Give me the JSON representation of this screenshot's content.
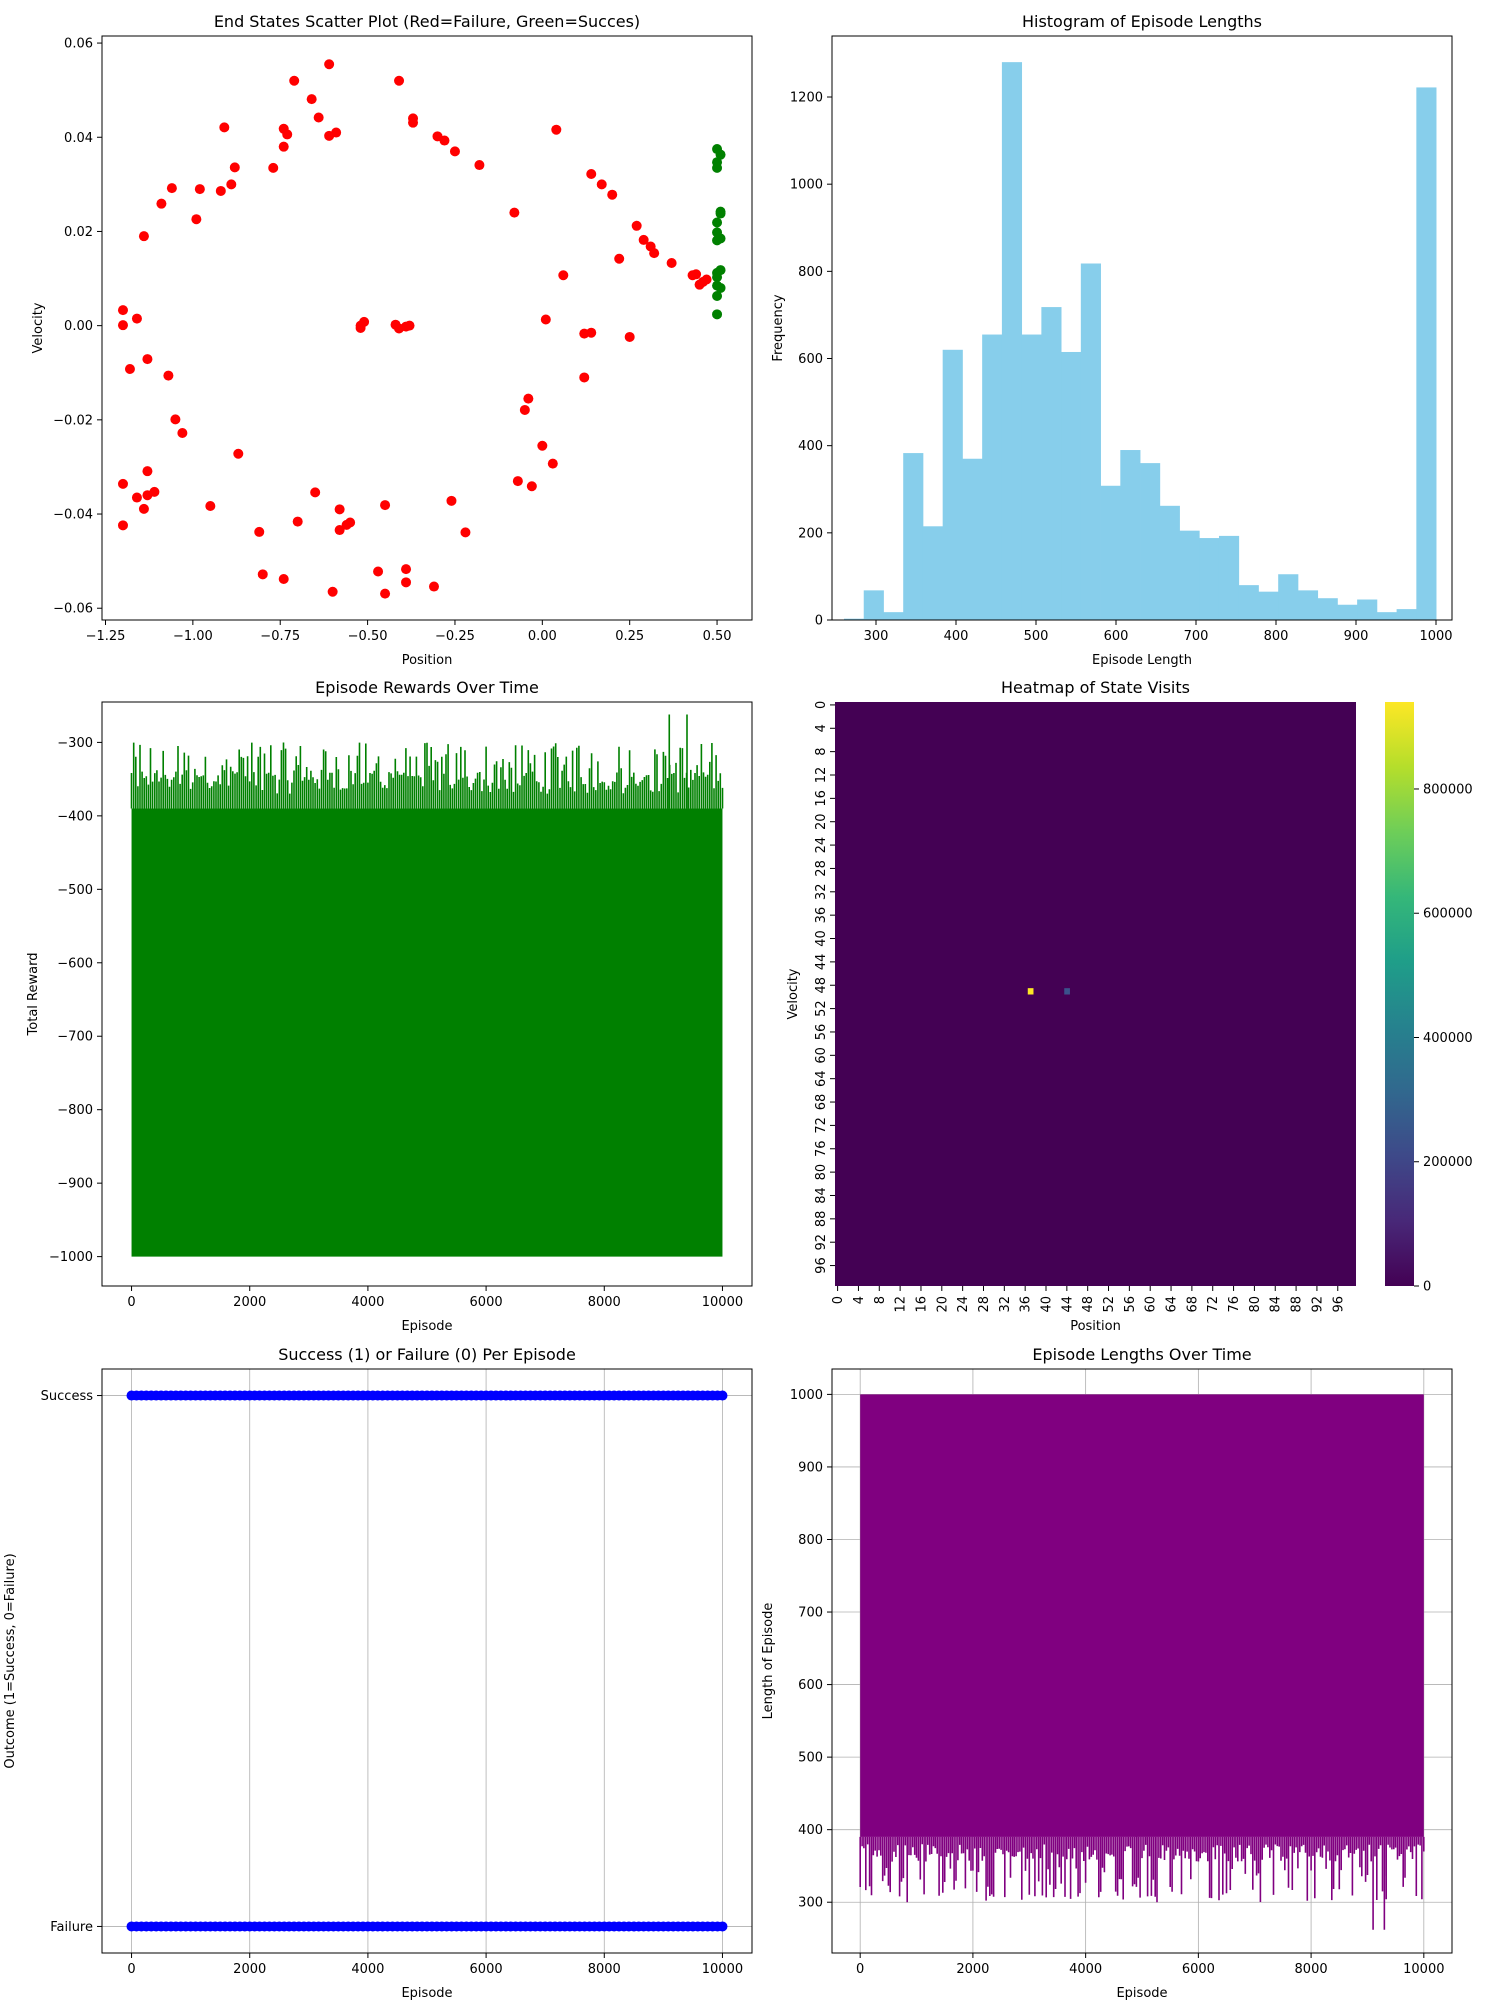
{
  "figure": {
    "background": "#ffffff"
  },
  "chart_data": [
    {
      "id": "scatter",
      "type": "scatter",
      "title": "End States Scatter Plot (Red=Failure, Green=Succes)",
      "xlabel": "Position",
      "ylabel": "Velocity",
      "xlim": [
        -1.26,
        0.6
      ],
      "ylim": [
        -0.0625,
        0.0615
      ],
      "xticks": [
        -1.25,
        -1.0,
        -0.75,
        -0.5,
        -0.25,
        0.0,
        0.25,
        0.5
      ],
      "xtick_labels": [
        "−1.25",
        "−1.00",
        "−0.75",
        "−0.50",
        "−0.25",
        "0.00",
        "0.25",
        "0.50"
      ],
      "yticks": [
        -0.06,
        -0.04,
        -0.02,
        0.0,
        0.02,
        0.04,
        0.06
      ],
      "ytick_labels": [
        "−0.06",
        "−0.04",
        "−0.02",
        "0.00",
        "0.02",
        "0.04",
        "0.06"
      ],
      "series": [
        {
          "color": "#ff0000",
          "points": [
            [
              -1.2,
              0.0033
            ],
            [
              -1.2,
              0.0001
            ],
            [
              -1.16,
              0.0015
            ],
            [
              -1.13,
              -0.0071
            ],
            [
              -1.18,
              -0.0092
            ],
            [
              -1.14,
              0.019
            ],
            [
              -1.07,
              -0.0106
            ],
            [
              -1.05,
              -0.0199
            ],
            [
              -1.03,
              -0.0228
            ],
            [
              -1.09,
              0.0259
            ],
            [
              -1.06,
              0.0292
            ],
            [
              -0.99,
              0.0226
            ],
            [
              -0.98,
              0.029
            ],
            [
              -0.92,
              0.0286
            ],
            [
              -0.91,
              0.0421
            ],
            [
              -0.89,
              0.03
            ],
            [
              -0.88,
              0.0336
            ],
            [
              -0.87,
              -0.0272
            ],
            [
              -0.95,
              -0.0383
            ],
            [
              -0.81,
              -0.0438
            ],
            [
              -0.8,
              -0.0528
            ],
            [
              -0.74,
              -0.0538
            ],
            [
              -0.77,
              0.0335
            ],
            [
              -0.74,
              0.0418
            ],
            [
              -0.73,
              0.0406
            ],
            [
              -0.74,
              0.038
            ],
            [
              -0.71,
              0.052
            ],
            [
              -0.66,
              0.0481
            ],
            [
              -0.64,
              0.0442
            ],
            [
              -0.61,
              0.0555
            ],
            [
              -0.61,
              0.0403
            ],
            [
              -0.59,
              0.041
            ],
            [
              -0.7,
              -0.0416
            ],
            [
              -0.65,
              -0.0354
            ],
            [
              -0.58,
              -0.039
            ],
            [
              -0.58,
              -0.0434
            ],
            [
              -0.56,
              -0.0423
            ],
            [
              -0.55,
              -0.0418
            ],
            [
              -0.6,
              -0.0565
            ],
            [
              -0.52,
              0.0
            ],
            [
              -0.51,
              0.0008
            ],
            [
              -0.52,
              -0.0005
            ],
            [
              -0.42,
              0.0002
            ],
            [
              -0.41,
              -0.0006
            ],
            [
              -0.39,
              -0.0002
            ],
            [
              -0.38,
              0.0
            ],
            [
              -0.41,
              0.052
            ],
            [
              -0.37,
              0.0431
            ],
            [
              -0.37,
              0.044
            ],
            [
              -0.3,
              0.0402
            ],
            [
              -0.28,
              0.0393
            ],
            [
              -0.25,
              0.037
            ],
            [
              -0.18,
              0.0341
            ],
            [
              -0.45,
              -0.0381
            ],
            [
              -0.47,
              -0.0522
            ],
            [
              -0.45,
              -0.0569
            ],
            [
              -0.39,
              -0.0517
            ],
            [
              -0.39,
              -0.0545
            ],
            [
              -0.31,
              -0.0554
            ],
            [
              -0.26,
              -0.0372
            ],
            [
              -0.22,
              -0.0439
            ],
            [
              -1.2,
              -0.0336
            ],
            [
              -1.2,
              -0.0424
            ],
            [
              -1.16,
              -0.0365
            ],
            [
              -1.14,
              -0.0389
            ],
            [
              -1.13,
              -0.0309
            ],
            [
              -1.13,
              -0.036
            ],
            [
              -1.11,
              -0.0353
            ],
            [
              -0.08,
              0.024
            ],
            [
              0.01,
              0.0013
            ],
            [
              0.04,
              0.0416
            ],
            [
              0.06,
              0.0107
            ],
            [
              -0.04,
              -0.0155
            ],
            [
              -0.05,
              -0.0179
            ],
            [
              0.0,
              -0.0255
            ],
            [
              0.03,
              -0.0293
            ],
            [
              -0.07,
              -0.033
            ],
            [
              -0.03,
              -0.0341
            ],
            [
              0.12,
              -0.0017
            ],
            [
              0.14,
              -0.0015
            ],
            [
              0.12,
              -0.011
            ],
            [
              0.14,
              0.0322
            ],
            [
              0.17,
              0.03
            ],
            [
              0.2,
              0.0278
            ],
            [
              0.22,
              0.0142
            ],
            [
              0.27,
              0.0212
            ],
            [
              0.29,
              0.0182
            ],
            [
              0.31,
              0.0168
            ],
            [
              0.32,
              0.0154
            ],
            [
              0.37,
              0.0133
            ],
            [
              0.25,
              -0.0024
            ],
            [
              0.43,
              0.0107
            ],
            [
              0.44,
              0.0109
            ],
            [
              0.45,
              0.0087
            ],
            [
              0.46,
              0.0093
            ],
            [
              0.47,
              0.0098
            ]
          ]
        },
        {
          "color": "#008000",
          "points": [
            [
              0.5,
              0.0375
            ],
            [
              0.51,
              0.0363
            ],
            [
              0.5,
              0.0347
            ],
            [
              0.5,
              0.0335
            ],
            [
              0.51,
              0.0242
            ],
            [
              0.5,
              0.0219
            ],
            [
              0.51,
              0.0238
            ],
            [
              0.5,
              0.0198
            ],
            [
              0.51,
              0.0185
            ],
            [
              0.5,
              0.0181
            ],
            [
              0.51,
              0.0118
            ],
            [
              0.5,
              0.0112
            ],
            [
              0.5,
              0.0103
            ],
            [
              0.5,
              0.0085
            ],
            [
              0.51,
              0.008
            ],
            [
              0.5,
              0.0063
            ],
            [
              0.5,
              0.0024
            ]
          ]
        }
      ]
    },
    {
      "id": "histogram",
      "type": "bar",
      "title": "Histogram of Episode Lengths",
      "xlabel": "Episode Length",
      "ylabel": "Frequency",
      "color": "#87ceeb",
      "xlim": [
        245,
        1020
      ],
      "ylim": [
        0,
        1340
      ],
      "xticks": [
        300,
        400,
        500,
        600,
        700,
        800,
        900,
        1000
      ],
      "yticks": [
        0,
        200,
        400,
        600,
        800,
        1000,
        1200
      ],
      "bin_start": 260,
      "bin_width": 24.67,
      "values": [
        3,
        68,
        18,
        383,
        215,
        620,
        370,
        655,
        1280,
        655,
        718,
        615,
        818,
        308,
        390,
        360,
        262,
        205,
        188,
        193,
        80,
        65,
        105,
        68,
        50,
        35,
        47,
        18,
        25,
        1222
      ]
    },
    {
      "id": "rewards",
      "type": "line",
      "title": "Episode Rewards Over Time",
      "xlabel": "Episode",
      "ylabel": "Total Reward",
      "color": "#008000",
      "xlim": [
        -500,
        10500
      ],
      "ylim": [
        -1040,
        -245
      ],
      "xticks": [
        0,
        2000,
        4000,
        6000,
        8000,
        10000
      ],
      "yticks": [
        -1000,
        -900,
        -800,
        -700,
        -600,
        -500,
        -400,
        -300
      ],
      "ytick_labels": [
        "−1000",
        "−900",
        "−800",
        "−700",
        "−600",
        "−500",
        "−400",
        "−300"
      ],
      "n_episodes": 10000,
      "min_value": -1000,
      "max_value": -262,
      "dense_top": -390
    },
    {
      "id": "heatmap",
      "type": "heatmap",
      "title": "Heatmap of State Visits",
      "xlabel": "Position",
      "ylabel": "Velocity",
      "grid_size": 100,
      "tick_labels": [
        "0",
        "4",
        "8",
        "12",
        "16",
        "20",
        "24",
        "28",
        "32",
        "36",
        "40",
        "44",
        "48",
        "52",
        "56",
        "60",
        "64",
        "68",
        "72",
        "76",
        "80",
        "84",
        "88",
        "92",
        "96"
      ],
      "background_color": "#440154",
      "hot_cells": [
        {
          "x": 37,
          "y": 49,
          "color": "#fde725"
        },
        {
          "x": 44,
          "y": 49,
          "color": "#3b528b"
        }
      ],
      "colorbar": {
        "ticks": [
          0,
          200000,
          400000,
          600000,
          800000
        ],
        "max": 940000,
        "colors": [
          "#440154",
          "#482878",
          "#3e4989",
          "#31688e",
          "#26828e",
          "#1f9e89",
          "#35b779",
          "#6ece58",
          "#b5de2b",
          "#fde725"
        ]
      }
    },
    {
      "id": "success",
      "type": "scatter",
      "title": "Success (1) or Failure (0) Per Episode",
      "xlabel": "Episode",
      "ylabel": "Outcome (1=Success, 0=Failure)",
      "color": "#0000ff",
      "xlim": [
        -500,
        10500
      ],
      "ylim": [
        -0.05,
        1.05
      ],
      "xticks": [
        0,
        2000,
        4000,
        6000,
        8000,
        10000
      ],
      "yticks": [
        0,
        1
      ],
      "ytick_labels": [
        "Failure",
        "Success"
      ],
      "grid": true,
      "n_episodes": 10000,
      "levels": [
        0,
        1
      ]
    },
    {
      "id": "lengths",
      "type": "line",
      "title": "Episode Lengths Over Time",
      "xlabel": "Episode",
      "ylabel": "Length of Episode",
      "color": "#800080",
      "xlim": [
        -500,
        10500
      ],
      "ylim": [
        230,
        1035
      ],
      "xticks": [
        0,
        2000,
        4000,
        6000,
        8000,
        10000
      ],
      "yticks": [
        300,
        400,
        500,
        600,
        700,
        800,
        900,
        1000
      ],
      "grid": true,
      "n_episodes": 10000,
      "min_value": 262,
      "max_value": 1000,
      "dense_bottom": 390
    }
  ]
}
